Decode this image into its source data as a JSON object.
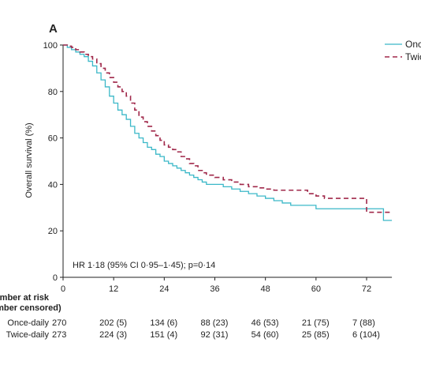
{
  "chart_data": {
    "type": "line",
    "title": "",
    "panel_label": "A",
    "xlabel": "",
    "ylabel": "Overall survival (%)",
    "xlim": [
      0,
      78
    ],
    "ylim": [
      0,
      100
    ],
    "x_ticks": [
      0,
      12,
      24,
      36,
      48,
      60,
      72
    ],
    "y_ticks": [
      0,
      20,
      40,
      60,
      80,
      100
    ],
    "grid": false,
    "legend_position": "top-right",
    "annotation": "HR 1·18 (95% CI 0·95–1·45); p=0·14",
    "series": [
      {
        "name": "Once-daily",
        "style": "solid",
        "color": "#3bb8c8",
        "points": [
          [
            0,
            100
          ],
          [
            1,
            99
          ],
          [
            2,
            98
          ],
          [
            3,
            97
          ],
          [
            4,
            96
          ],
          [
            5,
            95
          ],
          [
            6,
            93
          ],
          [
            7,
            91
          ],
          [
            8,
            88
          ],
          [
            9,
            85
          ],
          [
            10,
            82
          ],
          [
            11,
            78
          ],
          [
            12,
            75
          ],
          [
            13,
            72
          ],
          [
            14,
            70
          ],
          [
            15,
            68
          ],
          [
            16,
            65
          ],
          [
            17,
            62
          ],
          [
            18,
            60
          ],
          [
            19,
            58
          ],
          [
            20,
            56
          ],
          [
            21,
            55
          ],
          [
            22,
            53
          ],
          [
            23,
            52
          ],
          [
            24,
            50
          ],
          [
            25,
            49
          ],
          [
            26,
            48
          ],
          [
            27,
            47
          ],
          [
            28,
            46
          ],
          [
            29,
            45
          ],
          [
            30,
            44
          ],
          [
            31,
            43
          ],
          [
            32,
            42
          ],
          [
            33,
            41
          ],
          [
            34,
            40
          ],
          [
            36,
            40
          ],
          [
            38,
            39
          ],
          [
            40,
            38
          ],
          [
            42,
            37
          ],
          [
            44,
            36
          ],
          [
            46,
            35
          ],
          [
            48,
            34
          ],
          [
            50,
            33
          ],
          [
            52,
            32
          ],
          [
            54,
            31
          ],
          [
            56,
            31
          ],
          [
            60,
            31
          ],
          [
            60,
            29.5
          ],
          [
            72,
            29.5
          ],
          [
            76,
            29.5
          ],
          [
            76,
            24.5
          ],
          [
            78,
            24.5
          ]
        ]
      },
      {
        "name": "Twice-daily",
        "style": "dashed",
        "color": "#a0284a",
        "points": [
          [
            0,
            100
          ],
          [
            1,
            99.5
          ],
          [
            2,
            99
          ],
          [
            3,
            98
          ],
          [
            4,
            97
          ],
          [
            5,
            96
          ],
          [
            6,
            95
          ],
          [
            7,
            94
          ],
          [
            8,
            92
          ],
          [
            9,
            90
          ],
          [
            10,
            88
          ],
          [
            11,
            86
          ],
          [
            12,
            84
          ],
          [
            13,
            82
          ],
          [
            14,
            80
          ],
          [
            15,
            78
          ],
          [
            16,
            75
          ],
          [
            17,
            72
          ],
          [
            18,
            69
          ],
          [
            19,
            67
          ],
          [
            20,
            65
          ],
          [
            21,
            63
          ],
          [
            22,
            61
          ],
          [
            23,
            59
          ],
          [
            24,
            57
          ],
          [
            25,
            56
          ],
          [
            26,
            55
          ],
          [
            27,
            54
          ],
          [
            28,
            52
          ],
          [
            29,
            51
          ],
          [
            30,
            49
          ],
          [
            31,
            48
          ],
          [
            32,
            46
          ],
          [
            33,
            45
          ],
          [
            34,
            44
          ],
          [
            36,
            43
          ],
          [
            38,
            42
          ],
          [
            40,
            41
          ],
          [
            42,
            40
          ],
          [
            44,
            39
          ],
          [
            46,
            38.5
          ],
          [
            48,
            38
          ],
          [
            50,
            37.5
          ],
          [
            54,
            37.5
          ],
          [
            58,
            36
          ],
          [
            60,
            35
          ],
          [
            62,
            34
          ],
          [
            72,
            34
          ],
          [
            72,
            28
          ],
          [
            76,
            28
          ],
          [
            78,
            28
          ]
        ]
      }
    ],
    "number_at_risk": {
      "title_line1": "Number at risk",
      "title_line2": "(number censored)",
      "times": [
        0,
        12,
        24,
        36,
        48,
        60,
        72
      ],
      "rows": [
        {
          "name": "Once-daily",
          "values": [
            "270",
            "202 (5)",
            "134 (6)",
            "88 (23)",
            "46 (53)",
            "21 (75)",
            "7 (88)"
          ]
        },
        {
          "name": "Twice-daily",
          "values": [
            "273",
            "224 (3)",
            "151 (4)",
            "92 (31)",
            "54 (60)",
            "25 (85)",
            "6 (104)"
          ]
        }
      ]
    }
  }
}
